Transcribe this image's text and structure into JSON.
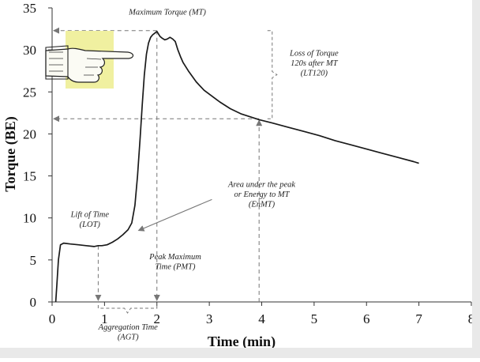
{
  "chart_data": {
    "type": "line",
    "title": "",
    "xlabel": "Time (min)",
    "ylabel": "Torque (BE)",
    "xlim": [
      0,
      8
    ],
    "ylim": [
      0,
      35
    ],
    "x_ticks": [
      "0",
      "1",
      "2",
      "3",
      "4",
      "5",
      "6",
      "7",
      "8"
    ],
    "y_ticks": [
      "0",
      "5",
      "10",
      "15",
      "20",
      "25",
      "30",
      "35"
    ],
    "grid": false,
    "legend": "none",
    "line_color": "#1a1a1a",
    "guide_color": "#777777",
    "pointer_box_color": "#f0f0a0",
    "series": [
      {
        "x": [
          0.07,
          0.09,
          0.12,
          0.16,
          0.22,
          0.35,
          0.5,
          0.65,
          0.8,
          0.88,
          0.95,
          1.05,
          1.15,
          1.25,
          1.35,
          1.45,
          1.52,
          1.58,
          1.63,
          1.68,
          1.72,
          1.76,
          1.8,
          1.84,
          1.88,
          1.92,
          1.96,
          2.0,
          2.02,
          2.06,
          2.1,
          2.15,
          2.2,
          2.25,
          2.3,
          2.35,
          2.4,
          2.45,
          2.5,
          2.6,
          2.75,
          2.9,
          3.05,
          3.2,
          3.4,
          3.6,
          3.8,
          3.95,
          4.2,
          4.5,
          4.8,
          5.1,
          5.4,
          5.7,
          6.0,
          6.3,
          6.6,
          6.9,
          7.0
        ],
        "y": [
          0,
          2,
          5,
          6.8,
          7.0,
          6.9,
          6.8,
          6.7,
          6.6,
          6.7,
          6.7,
          6.8,
          7.1,
          7.5,
          8.0,
          8.6,
          9.4,
          11.5,
          15.0,
          19.5,
          23.5,
          27.0,
          29.5,
          30.8,
          31.5,
          31.8,
          32.0,
          32.2,
          32.0,
          31.6,
          31.4,
          31.2,
          31.3,
          31.5,
          31.3,
          31.0,
          30.0,
          29.2,
          28.5,
          27.5,
          26.2,
          25.2,
          24.5,
          23.8,
          23.0,
          22.4,
          22.0,
          21.7,
          21.3,
          20.8,
          20.3,
          19.8,
          19.2,
          18.7,
          18.2,
          17.7,
          17.2,
          16.7,
          16.5
        ]
      }
    ],
    "annotations": [
      {
        "lines": [
          "Maximum Torque (MT)"
        ],
        "x": 2.2,
        "y": 34.2
      },
      {
        "lines": [
          "Loss of Torque",
          "120s after MT",
          "(LT120)"
        ],
        "x": 5.0,
        "y": 29.3
      },
      {
        "lines": [
          "Area under the peak",
          "or Energy to MT",
          "(EnMT)"
        ],
        "x": 4.0,
        "y": 13.7
      },
      {
        "lines": [
          "Lift of Time",
          "(LOT)"
        ],
        "x": 0.72,
        "y": 10.1
      },
      {
        "lines": [
          "Peak Maximum",
          "Time (PMT)"
        ],
        "x": 2.35,
        "y": 5.1
      },
      {
        "lines": [
          "Aggregation Time",
          "(AGT)"
        ],
        "x": 1.45,
        "y": -3.3
      }
    ],
    "markers": {
      "mt": {
        "x": 2.0,
        "y": 32.3
      },
      "lt120": {
        "x": 3.95,
        "y": 21.8
      },
      "lot_x": 0.88,
      "agt": [
        0.88,
        2.0
      ]
    }
  }
}
